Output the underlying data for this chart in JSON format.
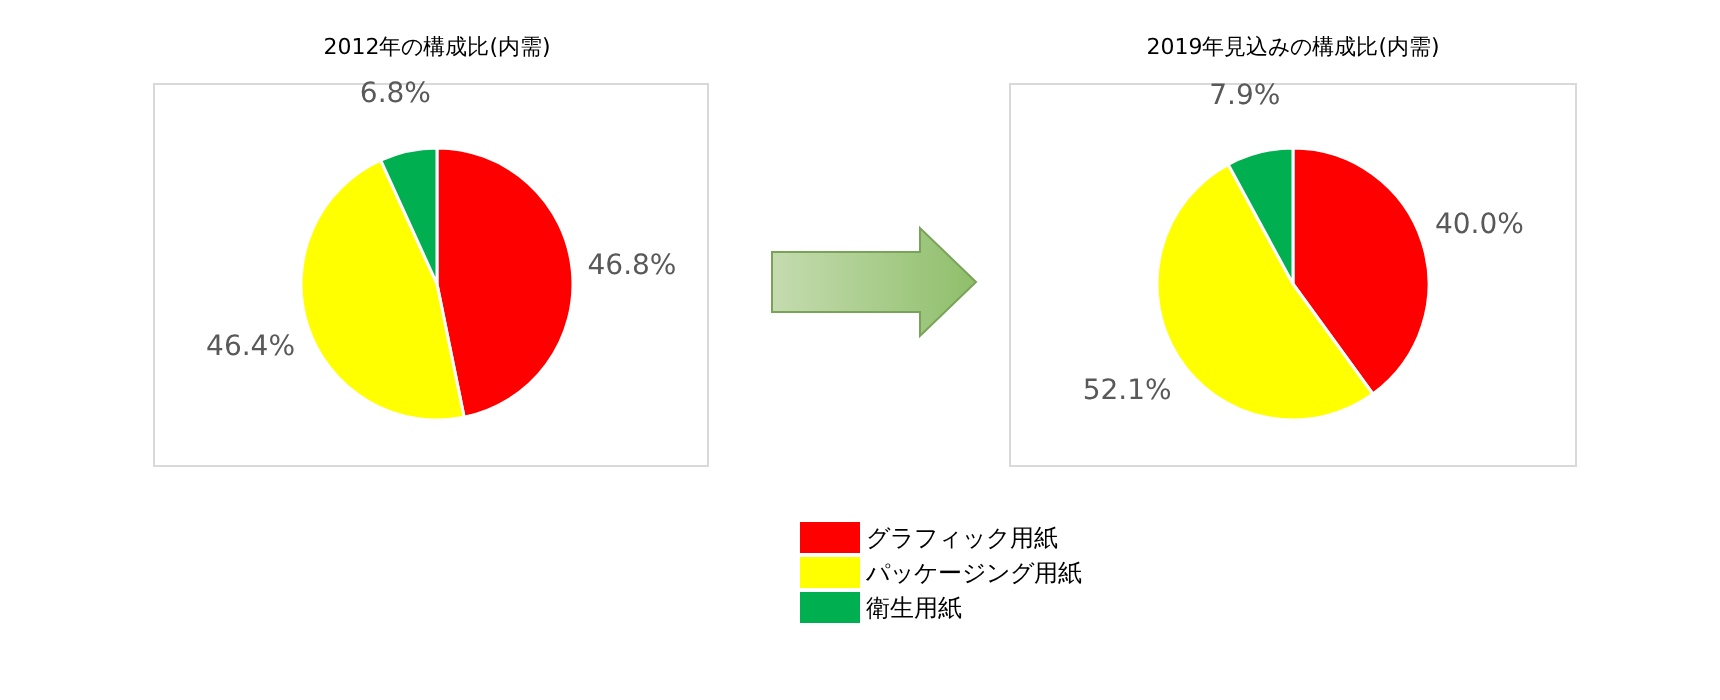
{
  "chart_data": [
    {
      "type": "pie",
      "title": "2012年の構成比(内需)",
      "categories": [
        "グラフィック用紙",
        "パッケージング用紙",
        "衛生用紙"
      ],
      "values": [
        46.8,
        46.4,
        6.8
      ],
      "colors": [
        "#ff0000",
        "#ffff00",
        "#00b050"
      ],
      "value_labels": [
        "46.8%",
        "46.4%",
        "6.8%"
      ],
      "legend": "bottom"
    },
    {
      "type": "pie",
      "title": "2019年見込みの構成比(内需)",
      "categories": [
        null,
        null,
        null
      ],
      "values": [
        40.0,
        52.1,
        7.9
      ],
      "colors": [
        "#ff0000",
        "#ffff00",
        "#00b050"
      ],
      "value_labels": [
        "40.0%",
        "52.1%",
        "7.9%"
      ]
    }
  ]
}
